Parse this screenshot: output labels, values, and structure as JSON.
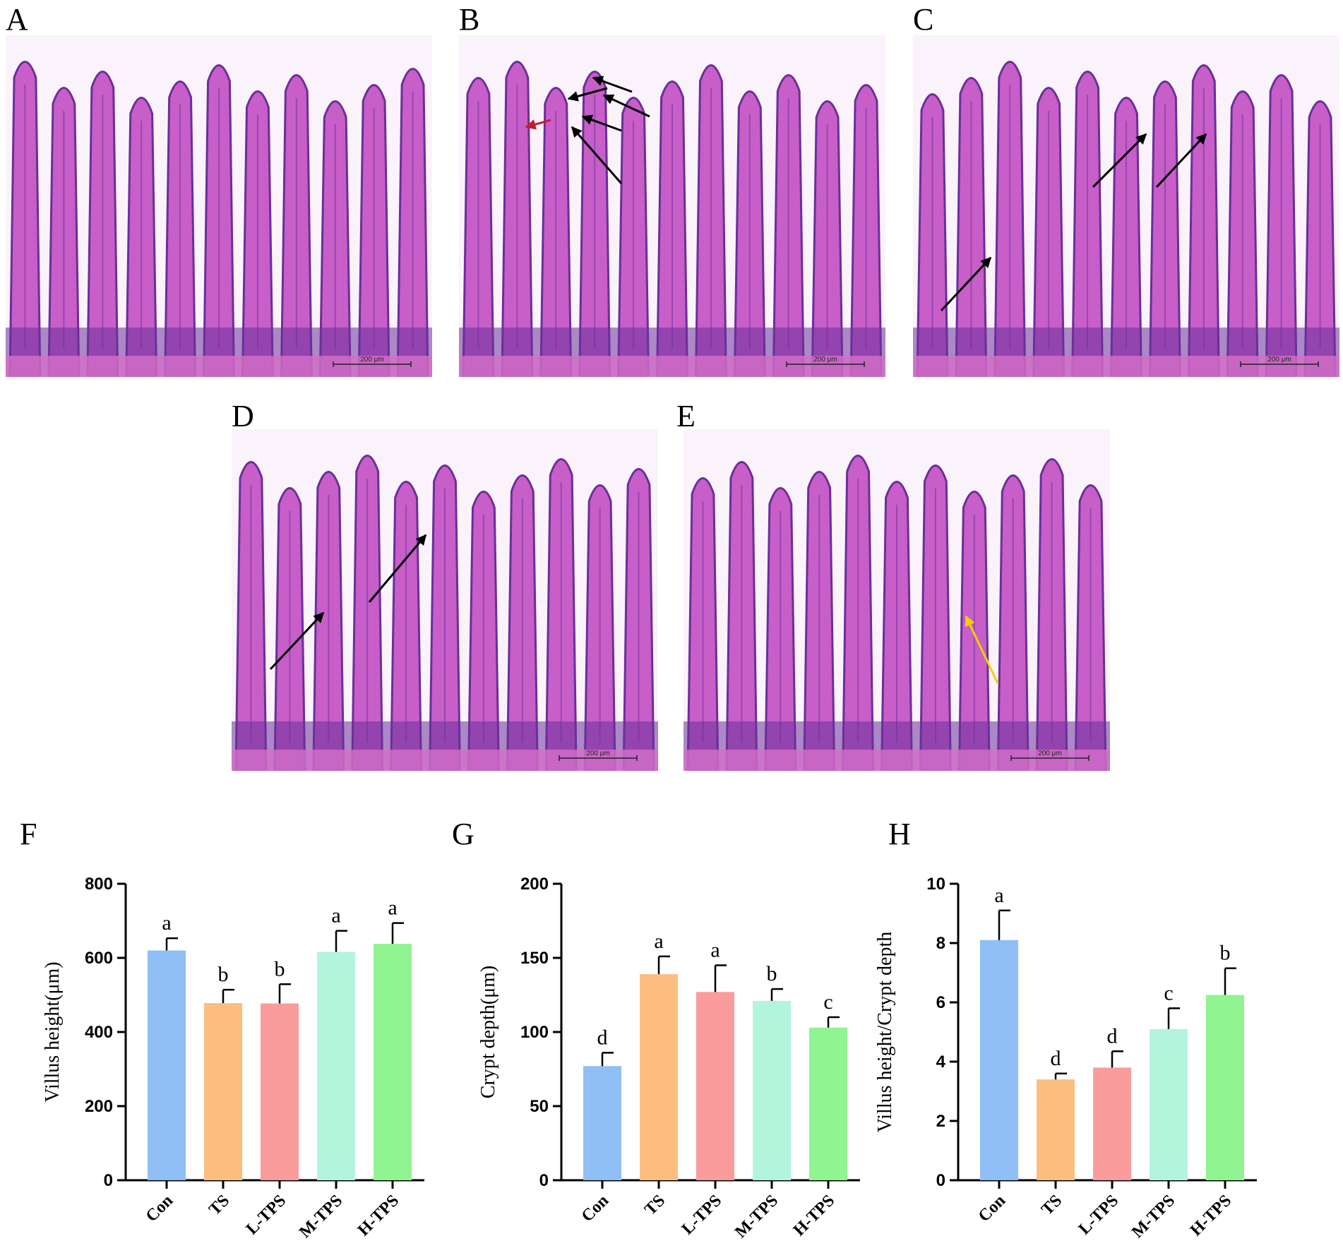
{
  "micrographs": [
    {
      "letter": "A",
      "scale_bar": "200 μm",
      "arrows": []
    },
    {
      "letter": "B",
      "scale_bar": "200 μm",
      "arrows": [
        "#c0202a",
        "#000000",
        "#000000",
        "#000000",
        "#000000",
        "#000000"
      ]
    },
    {
      "letter": "C",
      "scale_bar": "200 μm",
      "arrows": [
        "#000000",
        "#000000",
        "#000000"
      ]
    },
    {
      "letter": "D",
      "scale_bar": "200 μm",
      "arrows": [
        "#000000",
        "#000000"
      ]
    },
    {
      "letter": "E",
      "scale_bar": "200 μm",
      "arrows": [
        "#f2d000"
      ]
    }
  ],
  "colors": {
    "stain_base": "#c85ec8",
    "stain_dark": "#6a2f9a",
    "lumen": "#fbf3fb",
    "bars": [
      "#8fbff5",
      "#fbbe7e",
      "#fb9c9c",
      "#b3f4dc",
      "#90f590"
    ]
  },
  "chart_data": [
    {
      "letter": "F",
      "type": "bar",
      "categories": [
        "Con",
        "TS",
        "L-TPS",
        "M-TPS",
        "H-TPS"
      ],
      "values": [
        620,
        478,
        477,
        616,
        638
      ],
      "errors": [
        33,
        36,
        52,
        57,
        56
      ],
      "significance": [
        "a",
        "b",
        "b",
        "a",
        "a"
      ],
      "ylabel": "Villus height(μm)",
      "ylim": [
        0,
        800
      ],
      "yticks": [
        "0",
        "200",
        "400",
        "600",
        "800"
      ]
    },
    {
      "letter": "G",
      "type": "bar",
      "categories": [
        "Con",
        "TS",
        "L-TPS",
        "M-TPS",
        "H-TPS"
      ],
      "values": [
        77,
        139,
        127,
        121,
        103
      ],
      "errors": [
        9,
        12,
        18,
        8,
        7
      ],
      "significance": [
        "d",
        "a",
        "a",
        "b",
        "c"
      ],
      "ylabel": "Crypt depth(μm)",
      "ylim": [
        0,
        200
      ],
      "yticks": [
        "0",
        "50",
        "100",
        "150",
        "200"
      ]
    },
    {
      "letter": "H",
      "type": "bar",
      "categories": [
        "Con",
        "TS",
        "L-TPS",
        "M-TPS",
        "H-TPS"
      ],
      "values": [
        8.1,
        3.4,
        3.8,
        5.1,
        6.25
      ],
      "errors": [
        1.0,
        0.2,
        0.55,
        0.7,
        0.9
      ],
      "significance": [
        "a",
        "d",
        "d",
        "c",
        "b"
      ],
      "ylabel": "Villus height/Crypt depth",
      "ylim": [
        0,
        10
      ],
      "yticks": [
        "0",
        "2",
        "4",
        "6",
        "8",
        "10"
      ]
    }
  ]
}
